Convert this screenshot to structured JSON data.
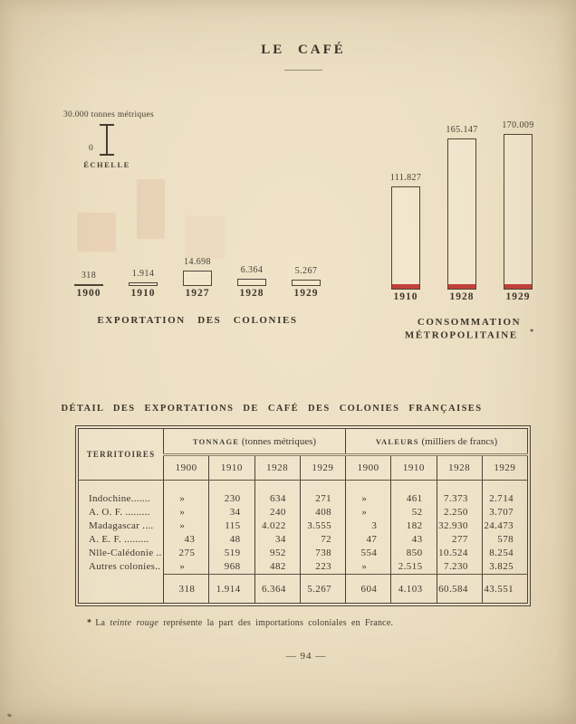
{
  "page": {
    "title": "LE CAFÉ",
    "number": "— 94 —"
  },
  "scale": {
    "top_label": "30.000 tonnes métriques",
    "zero": "0",
    "caption": "ÉCHELLE"
  },
  "chart_data": [
    {
      "type": "bar",
      "title": "EXPORTATION DES COLONIES",
      "unit": "tonnes métriques",
      "scale_note": "30.000 tonnes métriques (échelle)",
      "categories": [
        "1900",
        "1910",
        "1927",
        "1928",
        "1929"
      ],
      "values": [
        318,
        1914,
        14698,
        6364,
        5267
      ],
      "value_labels": [
        "318",
        "1.914",
        "14.698",
        "6.364",
        "5.267"
      ],
      "legend_position": "none",
      "grid": false
    },
    {
      "type": "bar",
      "title": "CONSOMMATION MÉTROPOLITAINE",
      "note_marker": "*",
      "unit": "tonnes métriques",
      "categories": [
        "1910",
        "1928",
        "1929"
      ],
      "values": [
        111827,
        165147,
        170009
      ],
      "value_labels": [
        "111.827",
        "165.147",
        "170.009"
      ],
      "red_band_meaning": "part des importations coloniales en France",
      "accent_color": "#c1413a",
      "legend_position": "none",
      "grid": false
    }
  ],
  "table": {
    "title": "DÉTAIL DES EXPORTATIONS DE CAFÉ DES COLONIES FRANÇAISES",
    "col_territory": "TERRITOIRES",
    "group1": {
      "caps": "TONNAGE",
      "rest": "(tonnes métriques)"
    },
    "group2": {
      "caps": "VALEURS",
      "rest": "(milliers de francs)"
    },
    "years": [
      "1900",
      "1910",
      "1928",
      "1929",
      "1900",
      "1910",
      "1928",
      "1929"
    ],
    "rows": [
      {
        "territory": "Indochine.......",
        "cells": [
          "»",
          "230",
          "634",
          "271",
          "»",
          "461",
          "7.373",
          "2.714"
        ]
      },
      {
        "territory": "A. O. F. .........",
        "cells": [
          "»",
          "34",
          "240",
          "408",
          "»",
          "52",
          "2.250",
          "3.707"
        ]
      },
      {
        "territory": "Madagascar ....",
        "cells": [
          "»",
          "115",
          "4.022",
          "3.555",
          "3",
          "182",
          "32.930",
          "24.473"
        ]
      },
      {
        "territory": "A. E. F. .........",
        "cells": [
          "43",
          "48",
          "34",
          "72",
          "47",
          "43",
          "277",
          "578"
        ]
      },
      {
        "territory": "Nlle-Calédonie ..",
        "cells": [
          "275",
          "519",
          "952",
          "738",
          "554",
          "850",
          "10.524",
          "8.254"
        ]
      },
      {
        "territory": "Autres colonies..",
        "cells": [
          "»",
          "968",
          "482",
          "223",
          "»",
          "2.515",
          "7.230",
          "3.825"
        ]
      }
    ],
    "total": {
      "cells": [
        "318",
        "1.914",
        "6.364",
        "5.267",
        "604",
        "4.103",
        "60.584",
        "43.551"
      ]
    }
  },
  "footnote": {
    "marker": "*",
    "pre": "La ",
    "italic": "teinte rouge",
    "post": " représente la part des importations coloniales en France."
  },
  "colors": {
    "paper": "#ebdec1",
    "ink": "#3e382e",
    "red": "#c1413a"
  }
}
